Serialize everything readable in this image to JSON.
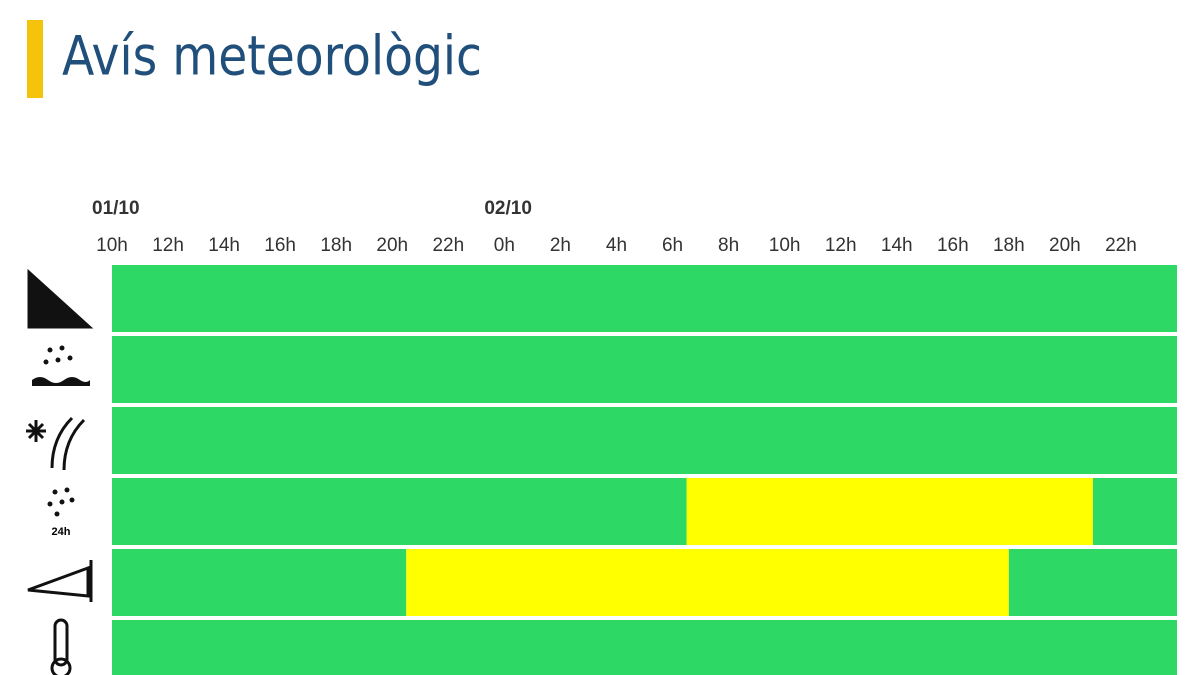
{
  "header": {
    "title": "Avís meteorològic"
  },
  "chart_data": {
    "type": "timeline",
    "dates": [
      {
        "value": 10,
        "label": "01/10"
      },
      {
        "value": 24,
        "label": "02/10"
      }
    ],
    "xlim": [
      10,
      48
    ],
    "xticks": [
      {
        "value": 10,
        "label": "10h"
      },
      {
        "value": 12,
        "label": "12h"
      },
      {
        "value": 14,
        "label": "14h"
      },
      {
        "value": 16,
        "label": "16h"
      },
      {
        "value": 18,
        "label": "18h"
      },
      {
        "value": 20,
        "label": "20h"
      },
      {
        "value": 22,
        "label": "22h"
      },
      {
        "value": 24,
        "label": "0h"
      },
      {
        "value": 26,
        "label": "2h"
      },
      {
        "value": 28,
        "label": "4h"
      },
      {
        "value": 30,
        "label": "6h"
      },
      {
        "value": 32,
        "label": "8h"
      },
      {
        "value": 34,
        "label": "10h"
      },
      {
        "value": 36,
        "label": "12h"
      },
      {
        "value": 38,
        "label": "14h"
      },
      {
        "value": 40,
        "label": "16h"
      },
      {
        "value": 42,
        "label": "18h"
      },
      {
        "value": 44,
        "label": "20h"
      },
      {
        "value": 46,
        "label": "22h"
      }
    ],
    "rows": [
      {
        "segments": [
          {
            "from": 10,
            "to": 48,
            "color": "#2dd964"
          }
        ]
      },
      {
        "segments": [
          {
            "from": 10,
            "to": 48,
            "color": "#2dd964"
          }
        ]
      },
      {
        "segments": [
          {
            "from": 10,
            "to": 48,
            "color": "#2dd964"
          }
        ]
      },
      {
        "icon_label": "24h",
        "segments": [
          {
            "from": 10,
            "to": 30.5,
            "color": "#2dd964"
          },
          {
            "from": 30.5,
            "to": 45,
            "color": "#ffff00"
          },
          {
            "from": 45,
            "to": 48,
            "color": "#2dd964"
          }
        ]
      },
      {
        "segments": [
          {
            "from": 10,
            "to": 20.5,
            "color": "#2dd964"
          },
          {
            "from": 20.5,
            "to": 42,
            "color": "#ffff00"
          },
          {
            "from": 42,
            "to": 48,
            "color": "#2dd964"
          }
        ]
      },
      {
        "segments": [
          {
            "from": 10,
            "to": 48,
            "color": "#2dd964"
          }
        ]
      }
    ]
  }
}
